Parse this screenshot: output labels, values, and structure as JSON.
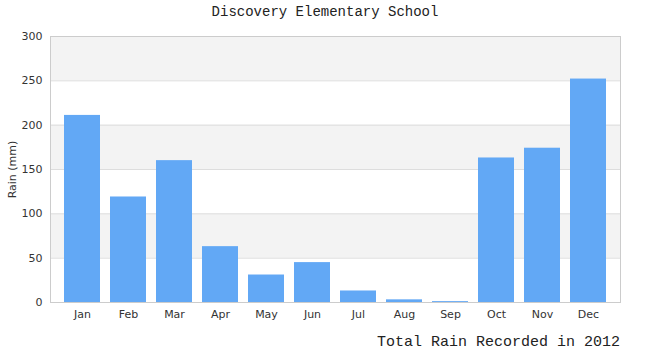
{
  "chart_data": {
    "type": "bar",
    "title": "Discovery Elementary School",
    "y_label": "Rain (mm)",
    "caption": "Total Rain Recorded in 2012",
    "categories": [
      "Jan",
      "Feb",
      "Mar",
      "Apr",
      "May",
      "Jun",
      "Jul",
      "Aug",
      "Sep",
      "Oct",
      "Nov",
      "Dec"
    ],
    "values": [
      211,
      119,
      160,
      63,
      31,
      45,
      13,
      3,
      1,
      163,
      174,
      252
    ],
    "color": "#62a8f5",
    "ylim": [
      0,
      300
    ],
    "yticks": [
      0,
      50,
      100,
      150,
      200,
      250,
      300
    ],
    "grid": true
  }
}
